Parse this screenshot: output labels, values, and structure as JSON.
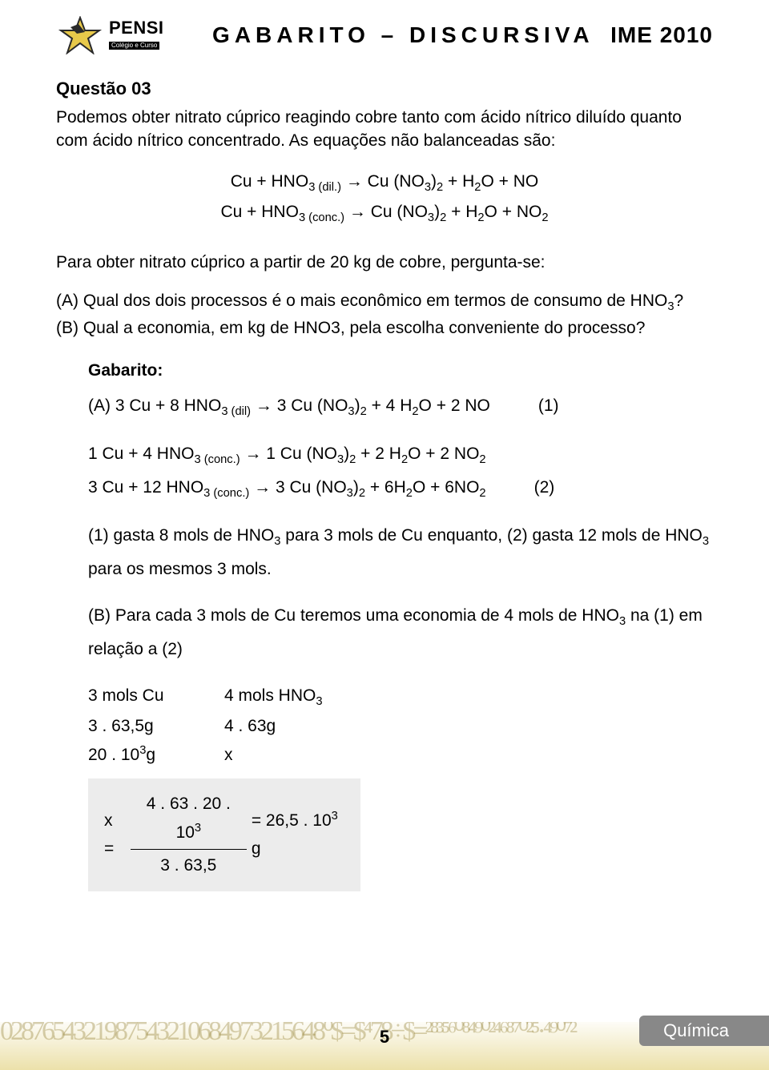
{
  "header": {
    "logo_main": "PENSI",
    "logo_sub": "Colégio e Curso",
    "title": "GABARITO – DISCURSIVA",
    "right": "IME 2010"
  },
  "question": {
    "label": "Questão 03",
    "intro": "Podemos obter nitrato cúprico reagindo cobre tanto com ácido nítrico diluído quanto com ácido nítrico concentrado. As equações não balanceadas são:",
    "eq1_html": "Cu + HNO<sub>3 (dil.)</sub> → Cu (NO<sub>3</sub>)<sub>2</sub> + H<sub>2</sub>O + NO",
    "eq2_html": "Cu + HNO<sub>3 (conc.)</sub> → Cu (NO<sub>3</sub>)<sub>2</sub> + H<sub>2</sub>O + NO<sub>2</sub>",
    "mid": "Para obter nitrato cúprico a partir de 20 kg de cobre, pergunta-se:",
    "partA_html": "(A) Qual dos dois processos é o mais econômico em termos de consumo de HNO<sub>3</sub>?",
    "partB": "(B) Qual a economia, em kg de HNO3, pela escolha conveniente do processo?"
  },
  "gabarito": {
    "title": "Gabarito:",
    "eqA_html": "(A) 3 Cu + 8 HNO<sub>3 (dil)</sub> → 3 Cu (NO<sub>3</sub>)<sub>2</sub> + 4 H<sub>2</sub>O + 2 NO",
    "eqA_num": "(1)",
    "eqB1_html": "1 Cu + 4 HNO<sub>3  (conc.)</sub> → 1 Cu (NO<sub>3</sub>)<sub>2</sub> + 2 H<sub>2</sub>O + 2 NO<sub>2</sub>",
    "eqB2_html": "3 Cu + 12 HNO<sub>3  (conc.)</sub> → 3 Cu (NO<sub>3</sub>)<sub>2</sub> + 6H<sub>2</sub>O + 6NO<sub>2</sub>",
    "eqB2_num": "(2)",
    "line1_html": "(1) gasta 8 mols de HNO<sub>3</sub> para 3 mols de Cu enquanto, (2) gasta 12 mols de HNO<sub>3</sub> para os mesmos 3 mols.",
    "line2_html": "(B) Para cada 3 mols de Cu teremos uma economia de 4 mols de HNO<sub>3</sub>  na (1) em relação a (2)",
    "ratio": {
      "r1c1": "3 mols Cu",
      "r1c2_html": "4 mols HNO<sub>3</sub>",
      "r2c1": "3 . 63,5g",
      "r2c2": "4 . 63g",
      "r3c1_html": "20 . 10<sup>3</sup>g",
      "r3c2": "x"
    },
    "frac": {
      "lhs": "x =",
      "num_html": "4 . 63 . 20 . 10<sup>3</sup>",
      "den": "3 . 63,5",
      "rhs_html": "= 26,5 . 10<sup>3 </sup>g"
    }
  },
  "footer": {
    "pagenum": "5",
    "subject": "Química",
    "noise": "0287654321987543210684973215648⁰$=$⁴78÷$=²⁸³⁵⁶⁰⁸⁴⁹⁰²⁴⁶⁸⁷⁰²⁵·⁴⁹⁰⁷²"
  },
  "colors": {
    "text": "#000000",
    "background": "#ffffff",
    "frac_bg": "#ececec",
    "footer_tab": "#888888",
    "footer_glow": "rgba(220,200,100,0.55)"
  }
}
